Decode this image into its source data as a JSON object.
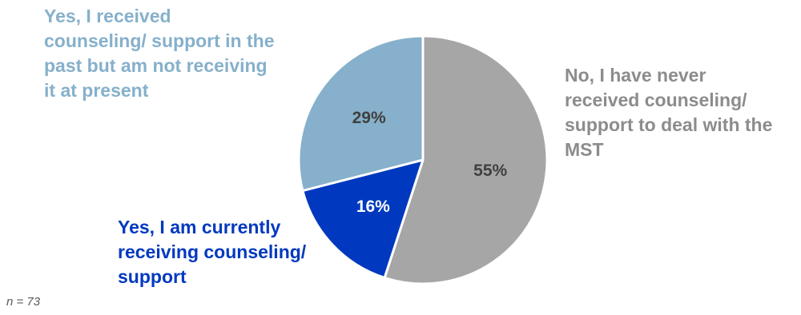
{
  "chart_data": {
    "type": "pie",
    "slices": [
      {
        "label": "No, I have never received counseling/ support to deal with the MST",
        "value": 55,
        "value_label": "55%",
        "color": "#a6a6a6",
        "label_color": "#8c8c8c"
      },
      {
        "label": "Yes, I am currently receiving counseling/ support",
        "value": 16,
        "value_label": "16%",
        "color": "#0039bf",
        "label_color": "#0039bf"
      },
      {
        "label": "Yes, I received counseling/ support in the past but am not receiving it at present",
        "value": 29,
        "value_label": "29%",
        "color": "#86b0cb",
        "label_color": "#86b0cb"
      }
    ],
    "start_angle": "12 o'clock",
    "direction": "clockwise",
    "legend": "none",
    "data_labels": "inside slices"
  },
  "labels": {
    "never": "No, I have never\nreceived counseling/\nsupport to deal with the\nMST",
    "current": "Yes, I am currently\nreceiving counseling/\nsupport",
    "past": "Yes, I received\ncounseling/ support in the\npast but am not receiving\nit at present"
  },
  "note": "n = 73"
}
